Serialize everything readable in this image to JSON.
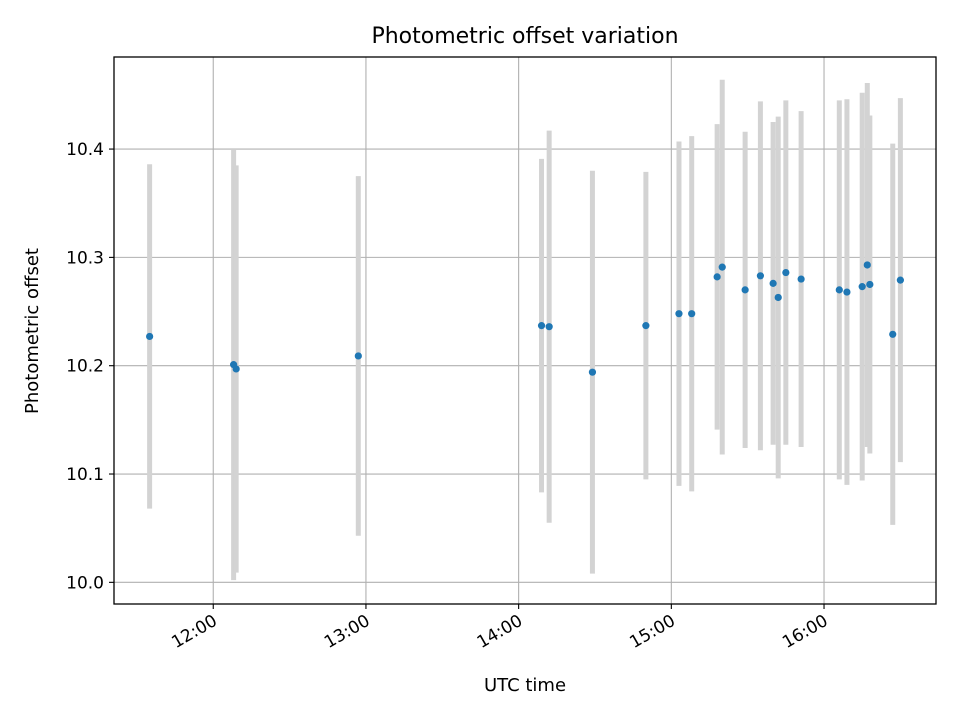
{
  "chart_data": {
    "type": "scatter",
    "title": "Photometric offset variation",
    "xlabel": "UTC time",
    "ylabel": "Photometric offset",
    "xlim": [
      "11:21",
      "16:44"
    ],
    "ylim": [
      9.98,
      10.485
    ],
    "x_ticks": [
      "12:00",
      "13:00",
      "14:00",
      "15:00",
      "16:00"
    ],
    "y_ticks": [
      "10.0",
      "10.1",
      "10.2",
      "10.3",
      "10.4"
    ],
    "grid": true,
    "marker_color": "#1f77b4",
    "errorbar_color": "#d3d3d3",
    "points": [
      {
        "time": "11:35",
        "value": 10.227,
        "error": 0.159
      },
      {
        "time": "12:08",
        "value": 10.201,
        "error": 0.199
      },
      {
        "time": "12:09",
        "value": 10.197,
        "error": 0.188
      },
      {
        "time": "12:57",
        "value": 10.209,
        "error": 0.166
      },
      {
        "time": "14:09",
        "value": 10.237,
        "error": 0.154
      },
      {
        "time": "14:12",
        "value": 10.236,
        "error": 0.181
      },
      {
        "time": "14:29",
        "value": 10.194,
        "error": 0.186
      },
      {
        "time": "14:50",
        "value": 10.237,
        "error": 0.142
      },
      {
        "time": "15:03",
        "value": 10.248,
        "error": 0.159
      },
      {
        "time": "15:08",
        "value": 10.248,
        "error": 0.164
      },
      {
        "time": "15:18",
        "value": 10.282,
        "error": 0.141
      },
      {
        "time": "15:20",
        "value": 10.291,
        "error": 0.173
      },
      {
        "time": "15:29",
        "value": 10.27,
        "error": 0.146
      },
      {
        "time": "15:35",
        "value": 10.283,
        "error": 0.161
      },
      {
        "time": "15:40",
        "value": 10.276,
        "error": 0.149
      },
      {
        "time": "15:42",
        "value": 10.263,
        "error": 0.167
      },
      {
        "time": "15:45",
        "value": 10.286,
        "error": 0.159
      },
      {
        "time": "15:51",
        "value": 10.28,
        "error": 0.155
      },
      {
        "time": "16:06",
        "value": 10.27,
        "error": 0.175
      },
      {
        "time": "16:09",
        "value": 10.268,
        "error": 0.178
      },
      {
        "time": "16:15",
        "value": 10.273,
        "error": 0.179
      },
      {
        "time": "16:17",
        "value": 10.293,
        "error": 0.168
      },
      {
        "time": "16:18",
        "value": 10.275,
        "error": 0.156
      },
      {
        "time": "16:27",
        "value": 10.229,
        "error": 0.176
      },
      {
        "time": "16:30",
        "value": 10.279,
        "error": 0.168
      }
    ]
  }
}
